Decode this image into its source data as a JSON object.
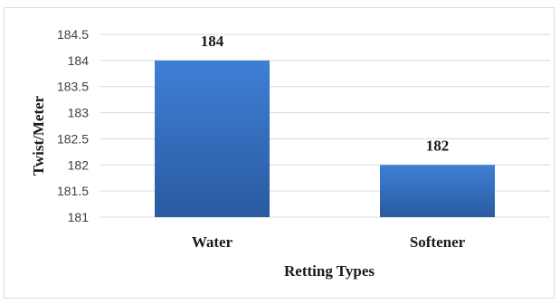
{
  "chart_data": {
    "type": "bar",
    "categories": [
      "Water",
      "Softener"
    ],
    "values": [
      184,
      182
    ],
    "data_labels": [
      "184",
      "182"
    ],
    "xlabel": "Retting Types",
    "ylabel": "Twist/Meter",
    "ylim": [
      181,
      184.5
    ],
    "yticks": [
      181,
      181.5,
      182,
      182.5,
      183,
      183.5,
      184,
      184.5
    ],
    "ytick_labels": [
      "181",
      "181.5",
      "182",
      "182.5",
      "183",
      "183.5",
      "184",
      "184.5"
    ],
    "grid": true,
    "legend": "none",
    "colors": {
      "bar_top": "#3f7fd6",
      "bar_bottom": "#2a5aa0",
      "grid": "#d9d9d9"
    }
  }
}
